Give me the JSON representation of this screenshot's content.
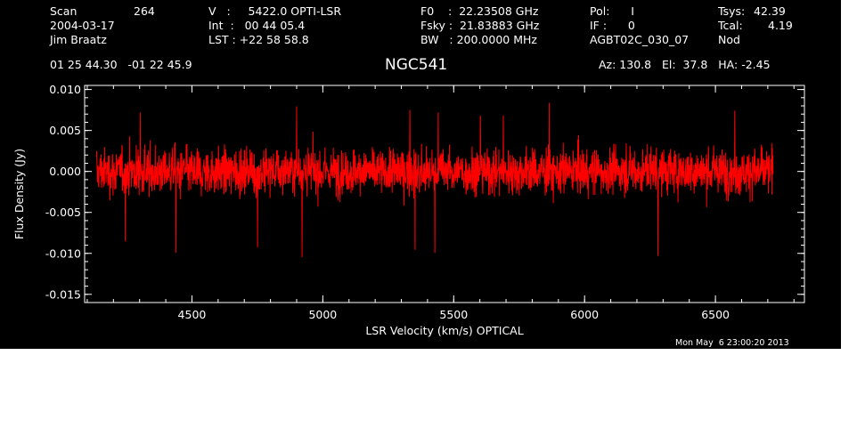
{
  "header": {
    "scan_label": "Scan",
    "scan_number": "264",
    "date": "2004-03-17",
    "observer": "Jim Braatz",
    "velocity": "V   :     5422.0 OPTI-LSR",
    "int": "Int  :   00 44 05.4",
    "lst": "LST : +22 58 58.8",
    "f0": "F0    :  22.23508 GHz",
    "fsky": "Fsky :  21.83883 GHz",
    "bw": "BW   : 200.0000 MHz",
    "pol": "Pol:      I",
    "if": "IF :      0",
    "project": "AGBT02C_030_07",
    "tsys_label": "Tsys:",
    "tsys_value": "42.39",
    "tcal_label": "Tcal:",
    "tcal_value": "4.19",
    "proc": "Nod",
    "coordinates": "01 25 44.30   -01 22 45.9",
    "pointing": "Az: 130.8   El:  37.8   HA: -2.45"
  },
  "footer": {
    "timestamp": "Mon May  6 23:00:20 2013"
  },
  "chart_data": {
    "type": "line",
    "title": "NGC541",
    "xlabel": "LSR Velocity (km/s) OPTICAL",
    "ylabel": "Flux Density (Jy)",
    "xlim": [
      4090,
      6840
    ],
    "ylim": [
      -0.016,
      0.0105
    ],
    "x_ticks": [
      4500,
      5000,
      5500,
      6000,
      6500
    ],
    "y_ticks": [
      0.01,
      0.005,
      0.0,
      -0.005,
      -0.01,
      -0.015
    ],
    "y_tick_labels": [
      "0.010",
      "0.005",
      "0.000",
      "-0.005",
      "-0.010",
      "-0.015"
    ],
    "x_range": [
      4135,
      6720
    ],
    "grid": false,
    "series": [
      {
        "color": "#ff0000",
        "description_values": {
          "mean": 0.0,
          "typical_min": -0.006,
          "typical_max": 0.007,
          "extreme_min": -0.0105,
          "extreme_max": 0.0085
        }
      }
    ],
    "colors": {
      "background": "#000000",
      "axes": "#ffffff",
      "trace": "#ff0000"
    }
  }
}
